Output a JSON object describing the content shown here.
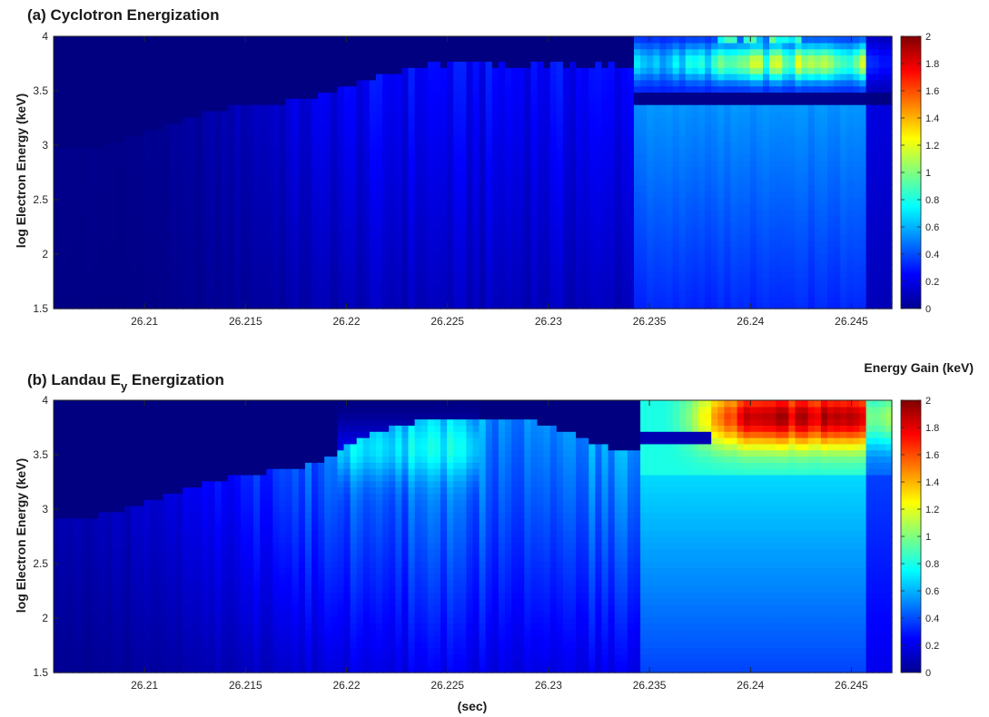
{
  "chart_data": [
    {
      "type": "heatmap",
      "title": "(a) Cyclotron Energization",
      "ylabel": "log Electron Energy (keV)",
      "xlim": [
        26.2055,
        26.247
      ],
      "ylim": [
        1.5,
        4
      ],
      "x_ticks": [
        "26.21",
        "26.215",
        "26.22",
        "26.225",
        "26.23",
        "26.235",
        "26.24",
        "26.245"
      ],
      "y_ticks": [
        "1.5",
        "2",
        "2.5",
        "3",
        "3.5",
        "4"
      ],
      "colorbar": {
        "label": "",
        "range": [
          0,
          2
        ],
        "ticks": [
          "0",
          "0.2",
          "0.4",
          "0.6",
          "0.8",
          "1",
          "1.2",
          "1.4",
          "1.6",
          "1.8",
          "2"
        ],
        "colormap": "jet"
      },
      "features": [
        {
          "x_range": [
            26.2055,
            26.2165
          ],
          "description": "weak striations",
          "peak_value": 0.15
        },
        {
          "x_range": [
            26.2165,
            26.2235
          ],
          "description": "broad band rising to about 3.6 log keV",
          "peak_value": 0.35
        },
        {
          "x_range": [
            26.2235,
            26.234
          ],
          "description": "streaks up to about 3.8 log keV",
          "peak_value": 0.4
        },
        {
          "x_range": [
            26.235,
            26.246
          ],
          "description": "enhanced band near 3.7-4 log keV",
          "peak_value": 1.3
        }
      ]
    },
    {
      "type": "heatmap",
      "title_main": "(b) Landau E",
      "title_sub": "y",
      "title_end": " Energization",
      "ylabel": "log Electron Energy (keV)",
      "xlabel": "(sec)",
      "xlim": [
        26.2055,
        26.247
      ],
      "ylim": [
        1.5,
        4
      ],
      "x_ticks": [
        "26.21",
        "26.215",
        "26.22",
        "26.225",
        "26.23",
        "26.235",
        "26.24",
        "26.245"
      ],
      "y_ticks": [
        "1.5",
        "2",
        "2.5",
        "3",
        "3.5",
        "4"
      ],
      "colorbar": {
        "label": "Energy Gain (keV)",
        "range": [
          0,
          2
        ],
        "ticks": [
          "0",
          "0.2",
          "0.4",
          "0.6",
          "0.8",
          "1",
          "1.2",
          "1.4",
          "1.6",
          "1.8",
          "2"
        ],
        "colormap": "jet"
      },
      "features": [
        {
          "x_range": [
            26.2055,
            26.215
          ],
          "description": "striations rising from 2.9 to 3.3 log keV",
          "peak_value": 0.3
        },
        {
          "x_range": [
            26.218,
            26.226
          ],
          "description": "band near 3.5-3.8 log keV",
          "peak_value": 0.85
        },
        {
          "x_range": [
            26.236,
            26.245
          ],
          "description": "strong gain near 3.6-4 log keV",
          "peak_value": 2.0
        }
      ]
    }
  ]
}
